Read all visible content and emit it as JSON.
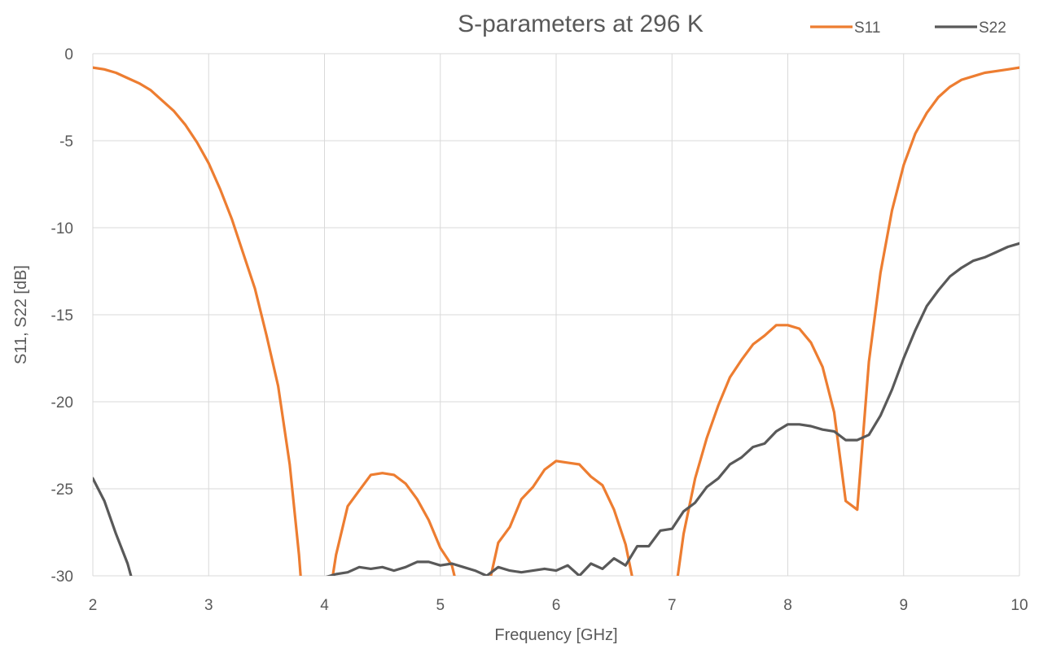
{
  "chart_data": {
    "type": "line",
    "title": "S-parameters at 296 K",
    "xlabel": "Frequency [GHz]",
    "ylabel": "S11, S22 [dB]",
    "xlim": [
      2,
      10
    ],
    "ylim": [
      -30,
      0
    ],
    "xticks": [
      "2",
      "3",
      "4",
      "5",
      "6",
      "7",
      "8",
      "9",
      "10"
    ],
    "yticks": [
      "0",
      "-5",
      "-10",
      "-15",
      "-20",
      "-25",
      "-30"
    ],
    "grid": true,
    "legend_position": "top-right",
    "series": [
      {
        "name": "S11",
        "color": "#ED7D31",
        "points": [
          [
            2.0,
            -0.8
          ],
          [
            2.1,
            -0.9
          ],
          [
            2.2,
            -1.1
          ],
          [
            2.3,
            -1.4
          ],
          [
            2.4,
            -1.7
          ],
          [
            2.5,
            -2.1
          ],
          [
            2.6,
            -2.7
          ],
          [
            2.7,
            -3.3
          ],
          [
            2.8,
            -4.1
          ],
          [
            2.9,
            -5.1
          ],
          [
            3.0,
            -6.3
          ],
          [
            3.1,
            -7.8
          ],
          [
            3.2,
            -9.5
          ],
          [
            3.3,
            -11.5
          ],
          [
            3.4,
            -13.5
          ],
          [
            3.5,
            -16.2
          ],
          [
            3.6,
            -19.1
          ],
          [
            3.7,
            -23.6
          ],
          [
            3.78,
            -28.8
          ],
          [
            3.8,
            -30.5
          ],
          [
            4.06,
            -30.5
          ],
          [
            4.1,
            -28.8
          ],
          [
            4.2,
            -26.0
          ],
          [
            4.3,
            -25.1
          ],
          [
            4.4,
            -24.2
          ],
          [
            4.5,
            -24.1
          ],
          [
            4.6,
            -24.2
          ],
          [
            4.7,
            -24.7
          ],
          [
            4.8,
            -25.6
          ],
          [
            4.9,
            -26.8
          ],
          [
            5.0,
            -28.4
          ],
          [
            5.1,
            -29.4
          ],
          [
            5.14,
            -30.5
          ],
          [
            5.42,
            -30.5
          ],
          [
            5.5,
            -28.1
          ],
          [
            5.6,
            -27.2
          ],
          [
            5.7,
            -25.6
          ],
          [
            5.8,
            -24.9
          ],
          [
            5.9,
            -23.9
          ],
          [
            6.0,
            -23.4
          ],
          [
            6.1,
            -23.5
          ],
          [
            6.2,
            -23.6
          ],
          [
            6.3,
            -24.3
          ],
          [
            6.4,
            -24.8
          ],
          [
            6.5,
            -26.2
          ],
          [
            6.6,
            -28.2
          ],
          [
            6.67,
            -30.5
          ],
          [
            7.04,
            -30.5
          ],
          [
            7.1,
            -27.6
          ],
          [
            7.2,
            -24.4
          ],
          [
            7.3,
            -22.1
          ],
          [
            7.4,
            -20.2
          ],
          [
            7.5,
            -18.6
          ],
          [
            7.6,
            -17.6
          ],
          [
            7.7,
            -16.7
          ],
          [
            7.8,
            -16.2
          ],
          [
            7.9,
            -15.6
          ],
          [
            8.0,
            -15.6
          ],
          [
            8.1,
            -15.8
          ],
          [
            8.2,
            -16.6
          ],
          [
            8.3,
            -18.0
          ],
          [
            8.4,
            -20.6
          ],
          [
            8.5,
            -25.7
          ],
          [
            8.6,
            -26.2
          ],
          [
            8.7,
            -17.7
          ],
          [
            8.8,
            -12.6
          ],
          [
            8.9,
            -9.0
          ],
          [
            9.0,
            -6.4
          ],
          [
            9.1,
            -4.6
          ],
          [
            9.2,
            -3.4
          ],
          [
            9.3,
            -2.5
          ],
          [
            9.4,
            -1.9
          ],
          [
            9.5,
            -1.5
          ],
          [
            9.6,
            -1.3
          ],
          [
            9.7,
            -1.1
          ],
          [
            9.8,
            -1.0
          ],
          [
            9.9,
            -0.9
          ],
          [
            10.0,
            -0.8
          ]
        ]
      },
      {
        "name": "S22",
        "color": "#595959",
        "points": [
          [
            2.0,
            -24.4
          ],
          [
            2.1,
            -25.7
          ],
          [
            2.2,
            -27.6
          ],
          [
            2.3,
            -29.3
          ],
          [
            2.35,
            -30.5
          ],
          [
            4.0,
            -30.1
          ],
          [
            4.1,
            -29.9
          ],
          [
            4.2,
            -29.8
          ],
          [
            4.3,
            -29.5
          ],
          [
            4.4,
            -29.6
          ],
          [
            4.5,
            -29.5
          ],
          [
            4.6,
            -29.7
          ],
          [
            4.7,
            -29.5
          ],
          [
            4.8,
            -29.2
          ],
          [
            4.9,
            -29.2
          ],
          [
            5.0,
            -29.4
          ],
          [
            5.1,
            -29.3
          ],
          [
            5.2,
            -29.5
          ],
          [
            5.3,
            -29.7
          ],
          [
            5.4,
            -30.0
          ],
          [
            5.5,
            -29.5
          ],
          [
            5.6,
            -29.7
          ],
          [
            5.7,
            -29.8
          ],
          [
            5.8,
            -29.7
          ],
          [
            5.9,
            -29.6
          ],
          [
            6.0,
            -29.7
          ],
          [
            6.1,
            -29.4
          ],
          [
            6.2,
            -30.0
          ],
          [
            6.3,
            -29.3
          ],
          [
            6.4,
            -29.6
          ],
          [
            6.5,
            -29.0
          ],
          [
            6.6,
            -29.4
          ],
          [
            6.7,
            -28.3
          ],
          [
            6.8,
            -28.3
          ],
          [
            6.9,
            -27.4
          ],
          [
            7.0,
            -27.3
          ],
          [
            7.1,
            -26.3
          ],
          [
            7.2,
            -25.8
          ],
          [
            7.3,
            -24.9
          ],
          [
            7.4,
            -24.4
          ],
          [
            7.5,
            -23.6
          ],
          [
            7.6,
            -23.2
          ],
          [
            7.7,
            -22.6
          ],
          [
            7.8,
            -22.4
          ],
          [
            7.9,
            -21.7
          ],
          [
            8.0,
            -21.3
          ],
          [
            8.1,
            -21.3
          ],
          [
            8.2,
            -21.4
          ],
          [
            8.3,
            -21.6
          ],
          [
            8.4,
            -21.7
          ],
          [
            8.5,
            -22.2
          ],
          [
            8.6,
            -22.2
          ],
          [
            8.7,
            -21.9
          ],
          [
            8.8,
            -20.8
          ],
          [
            8.9,
            -19.3
          ],
          [
            9.0,
            -17.5
          ],
          [
            9.1,
            -15.9
          ],
          [
            9.2,
            -14.5
          ],
          [
            9.3,
            -13.6
          ],
          [
            9.4,
            -12.8
          ],
          [
            9.5,
            -12.3
          ],
          [
            9.6,
            -11.9
          ],
          [
            9.7,
            -11.7
          ],
          [
            9.8,
            -11.4
          ],
          [
            9.9,
            -11.1
          ],
          [
            10.0,
            -10.9
          ]
        ]
      }
    ]
  }
}
